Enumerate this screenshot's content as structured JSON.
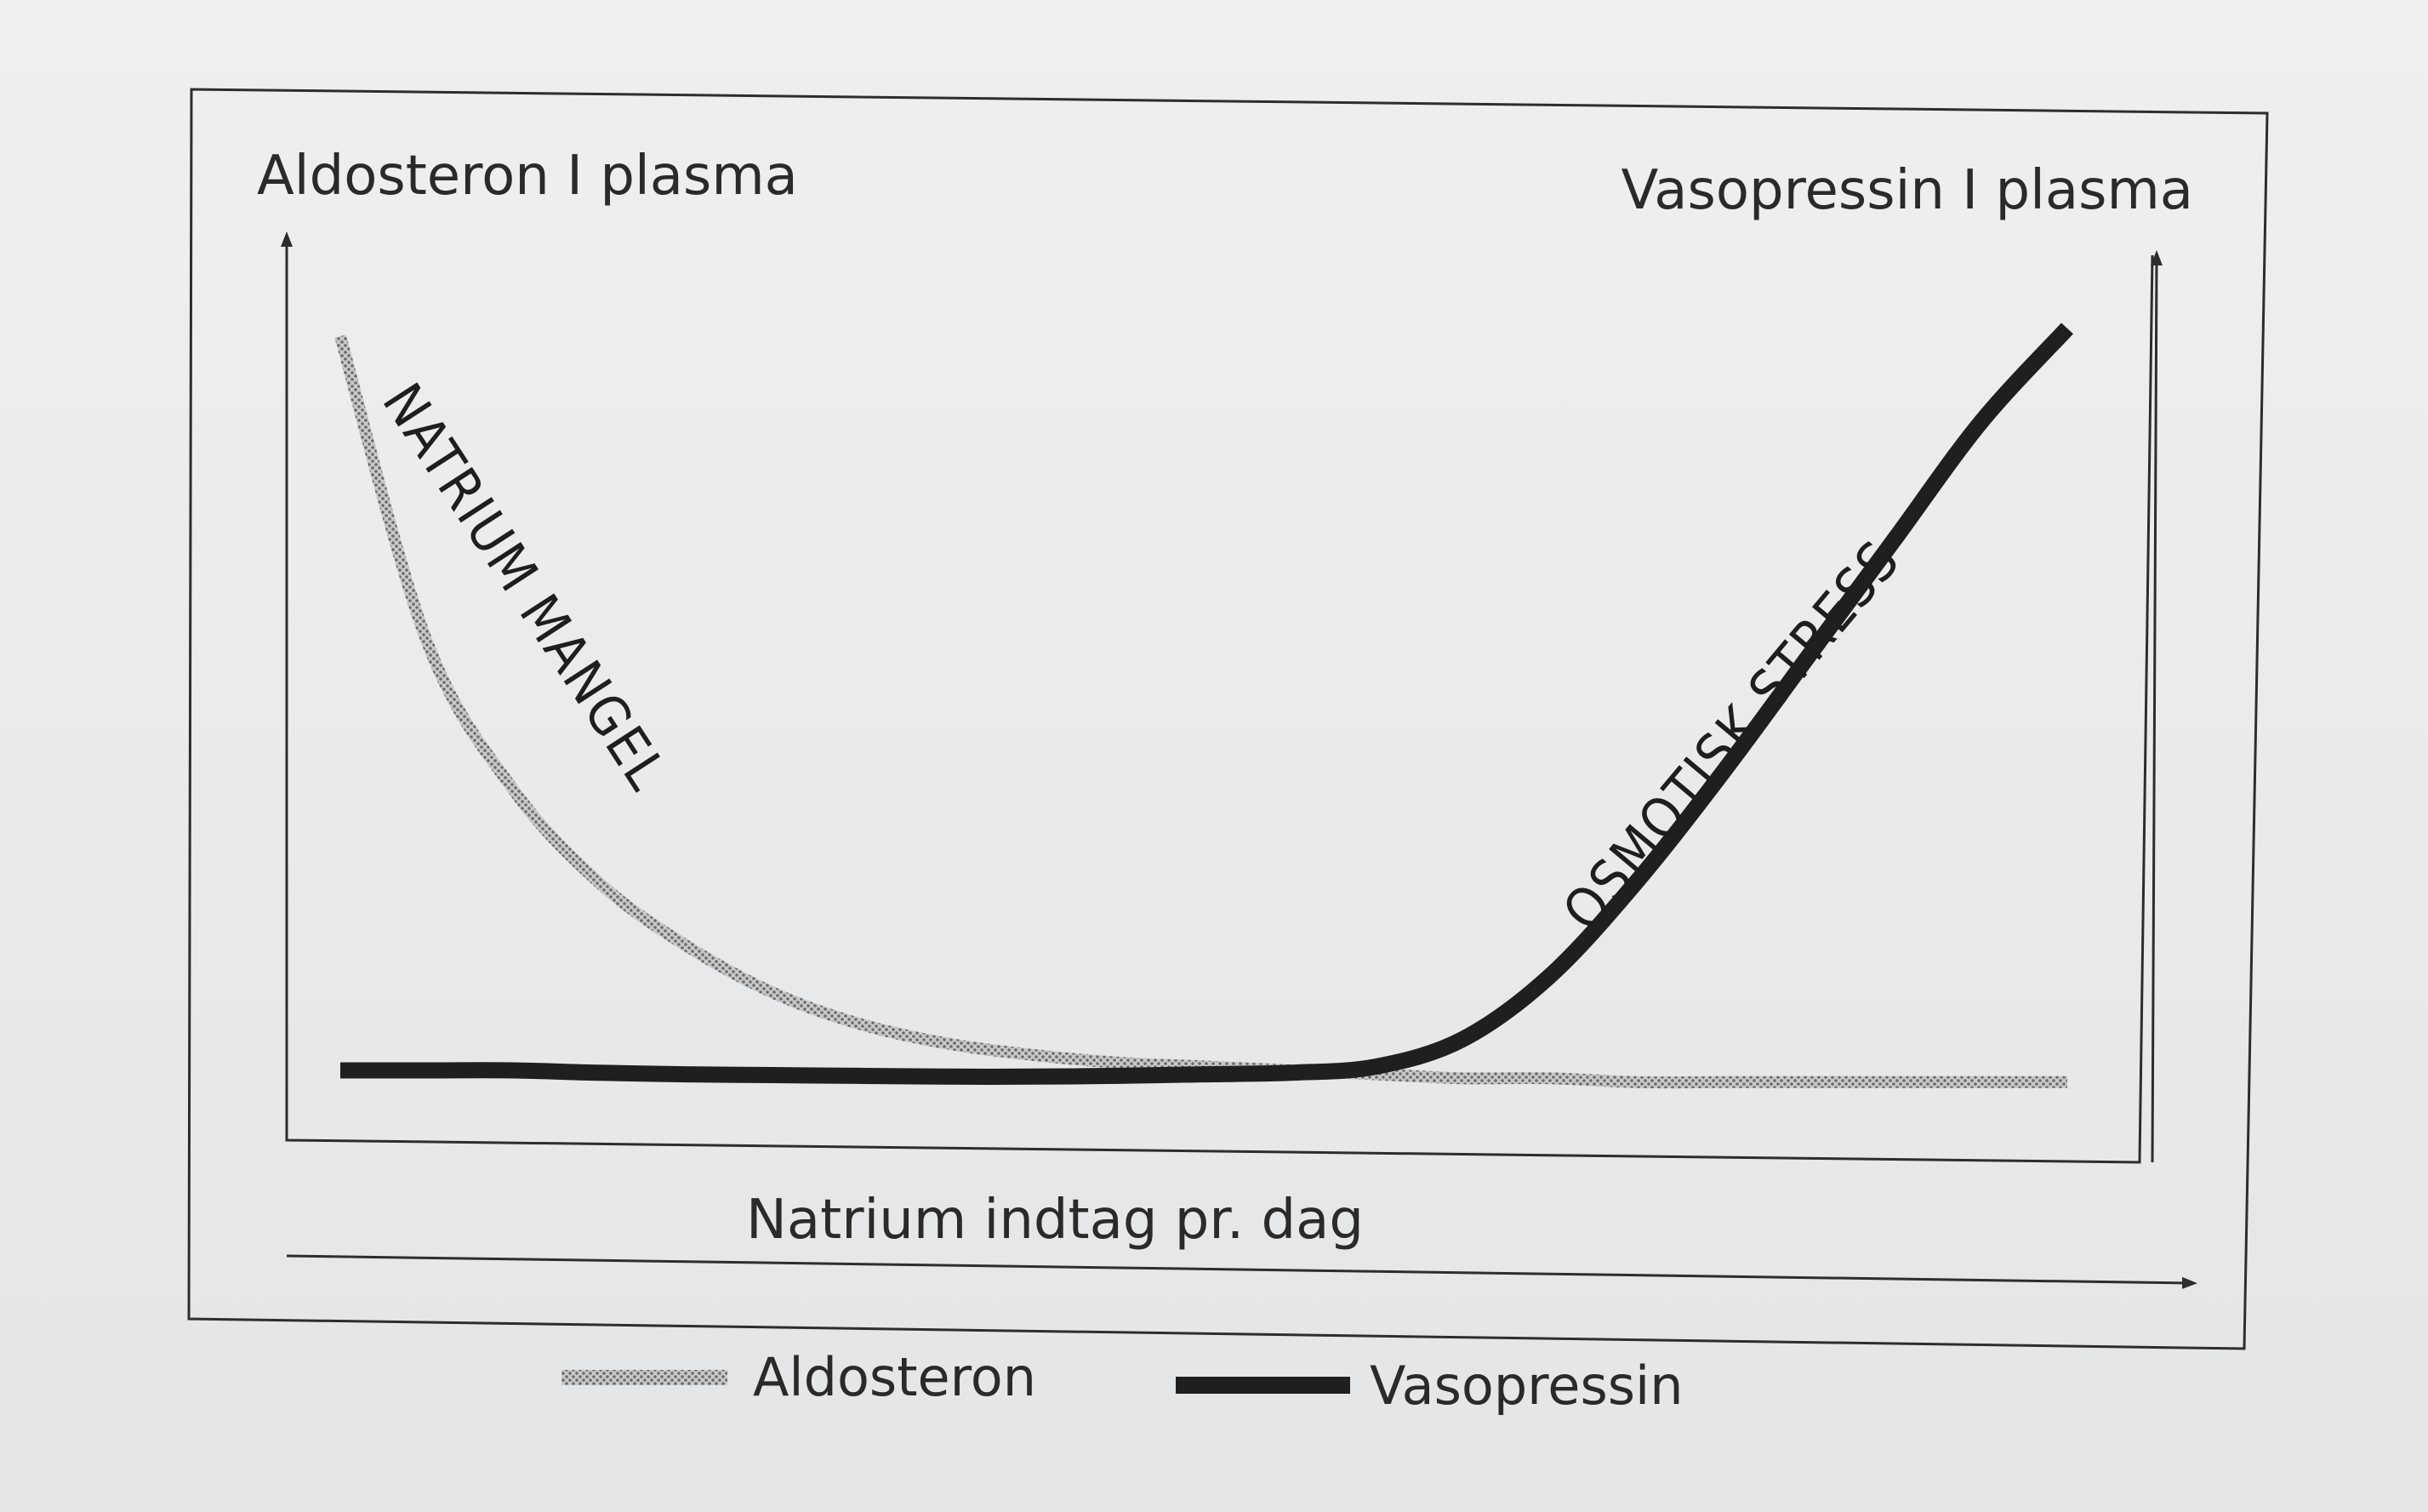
{
  "chart_data": {
    "type": "line",
    "left_axis_label": "Aldosteron I plasma",
    "right_axis_label": "Vasopressin I plasma",
    "xlabel": "Natrium indtag pr. dag",
    "annotations": [
      "NATRIUM MANGEL",
      "OSMOTISK STRESS"
    ],
    "x": [
      0,
      0.05,
      0.1,
      0.15,
      0.2,
      0.25,
      0.3,
      0.35,
      0.4,
      0.45,
      0.5,
      0.55,
      0.6,
      0.65,
      0.7,
      0.75,
      0.8,
      0.85,
      0.9,
      0.95,
      1.0
    ],
    "series": [
      {
        "name": "Aldosteron",
        "style": "dotted-gray",
        "values": [
          0.94,
          0.55,
          0.36,
          0.24,
          0.16,
          0.1,
          0.06,
          0.035,
          0.02,
          0.01,
          0.005,
          0.0,
          -0.005,
          -0.01,
          -0.01,
          -0.015,
          -0.015,
          -0.015,
          -0.015,
          -0.015,
          -0.015
        ]
      },
      {
        "name": "Vasopressin",
        "style": "solid-black",
        "values": [
          0.0,
          0.0,
          0.0,
          -0.003,
          -0.005,
          -0.006,
          -0.007,
          -0.008,
          -0.008,
          -0.007,
          -0.005,
          -0.003,
          0.005,
          0.04,
          0.12,
          0.24,
          0.38,
          0.53,
          0.68,
          0.83,
          0.95
        ]
      }
    ],
    "legend_position": "bottom",
    "grid": false,
    "xlim": [
      0,
      1
    ],
    "ylim": [
      0,
      1
    ]
  },
  "colors": {
    "aldosteron": "#9a9a9a",
    "vasopressin": "#1f1f1f",
    "frame": "#2d2d2d"
  }
}
